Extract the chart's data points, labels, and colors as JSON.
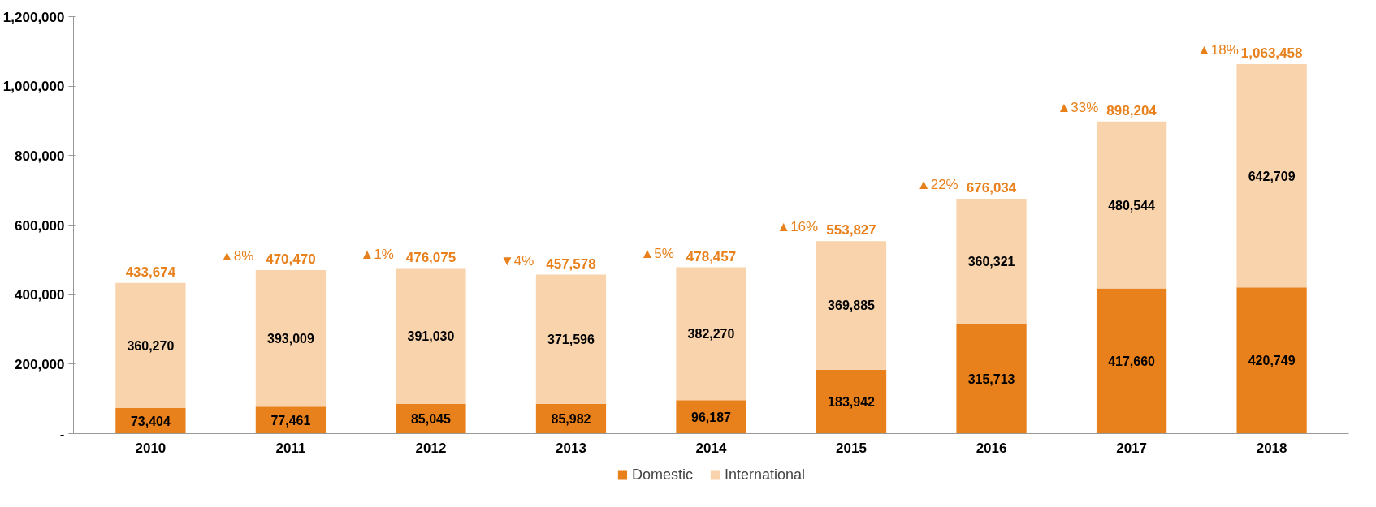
{
  "chart_data": {
    "type": "bar",
    "stacked": true,
    "categories": [
      "2010",
      "2011",
      "2012",
      "2013",
      "2014",
      "2015",
      "2016",
      "2017",
      "2018"
    ],
    "series": [
      {
        "name": "Domestic",
        "color": "#e8801c",
        "values": [
          73404,
          77461,
          85045,
          85982,
          96187,
          183942,
          315713,
          417660,
          420749
        ],
        "value_labels": [
          "73,404",
          "77,461",
          "85,045",
          "85,982",
          "96,187",
          "183,942",
          "315,713",
          "417,660",
          "420,749"
        ]
      },
      {
        "name": "International",
        "color": "#f8d3ab",
        "values": [
          360270,
          393009,
          391030,
          371596,
          382270,
          369885,
          360321,
          480544,
          642709
        ],
        "value_labels": [
          "360,270",
          "393,009",
          "391,030",
          "371,596",
          "382,270",
          "369,885",
          "360,321",
          "480,544",
          "642,709"
        ]
      }
    ],
    "totals": [
      "433,674",
      "470,470",
      "476,075",
      "457,578",
      "478,457",
      "553,827",
      "676,034",
      "898,204",
      "1,063,458"
    ],
    "annotations": [
      "▲8%",
      "▲1%",
      "▼4%",
      "▲5%",
      "▲16%",
      "▲22%",
      "▲33%",
      "▲18%"
    ],
    "ylim": [
      0,
      1200000
    ],
    "yticks": [
      {
        "value": 0,
        "label": "-"
      },
      {
        "value": 200000,
        "label": "200,000"
      },
      {
        "value": 400000,
        "label": "400,000"
      },
      {
        "value": 600000,
        "label": "600,000"
      },
      {
        "value": 800000,
        "label": "800,000"
      },
      {
        "value": 1000000,
        "label": "1,000,000"
      },
      {
        "value": 1200000,
        "label": "1,200,000"
      }
    ],
    "legend": "bottom"
  }
}
